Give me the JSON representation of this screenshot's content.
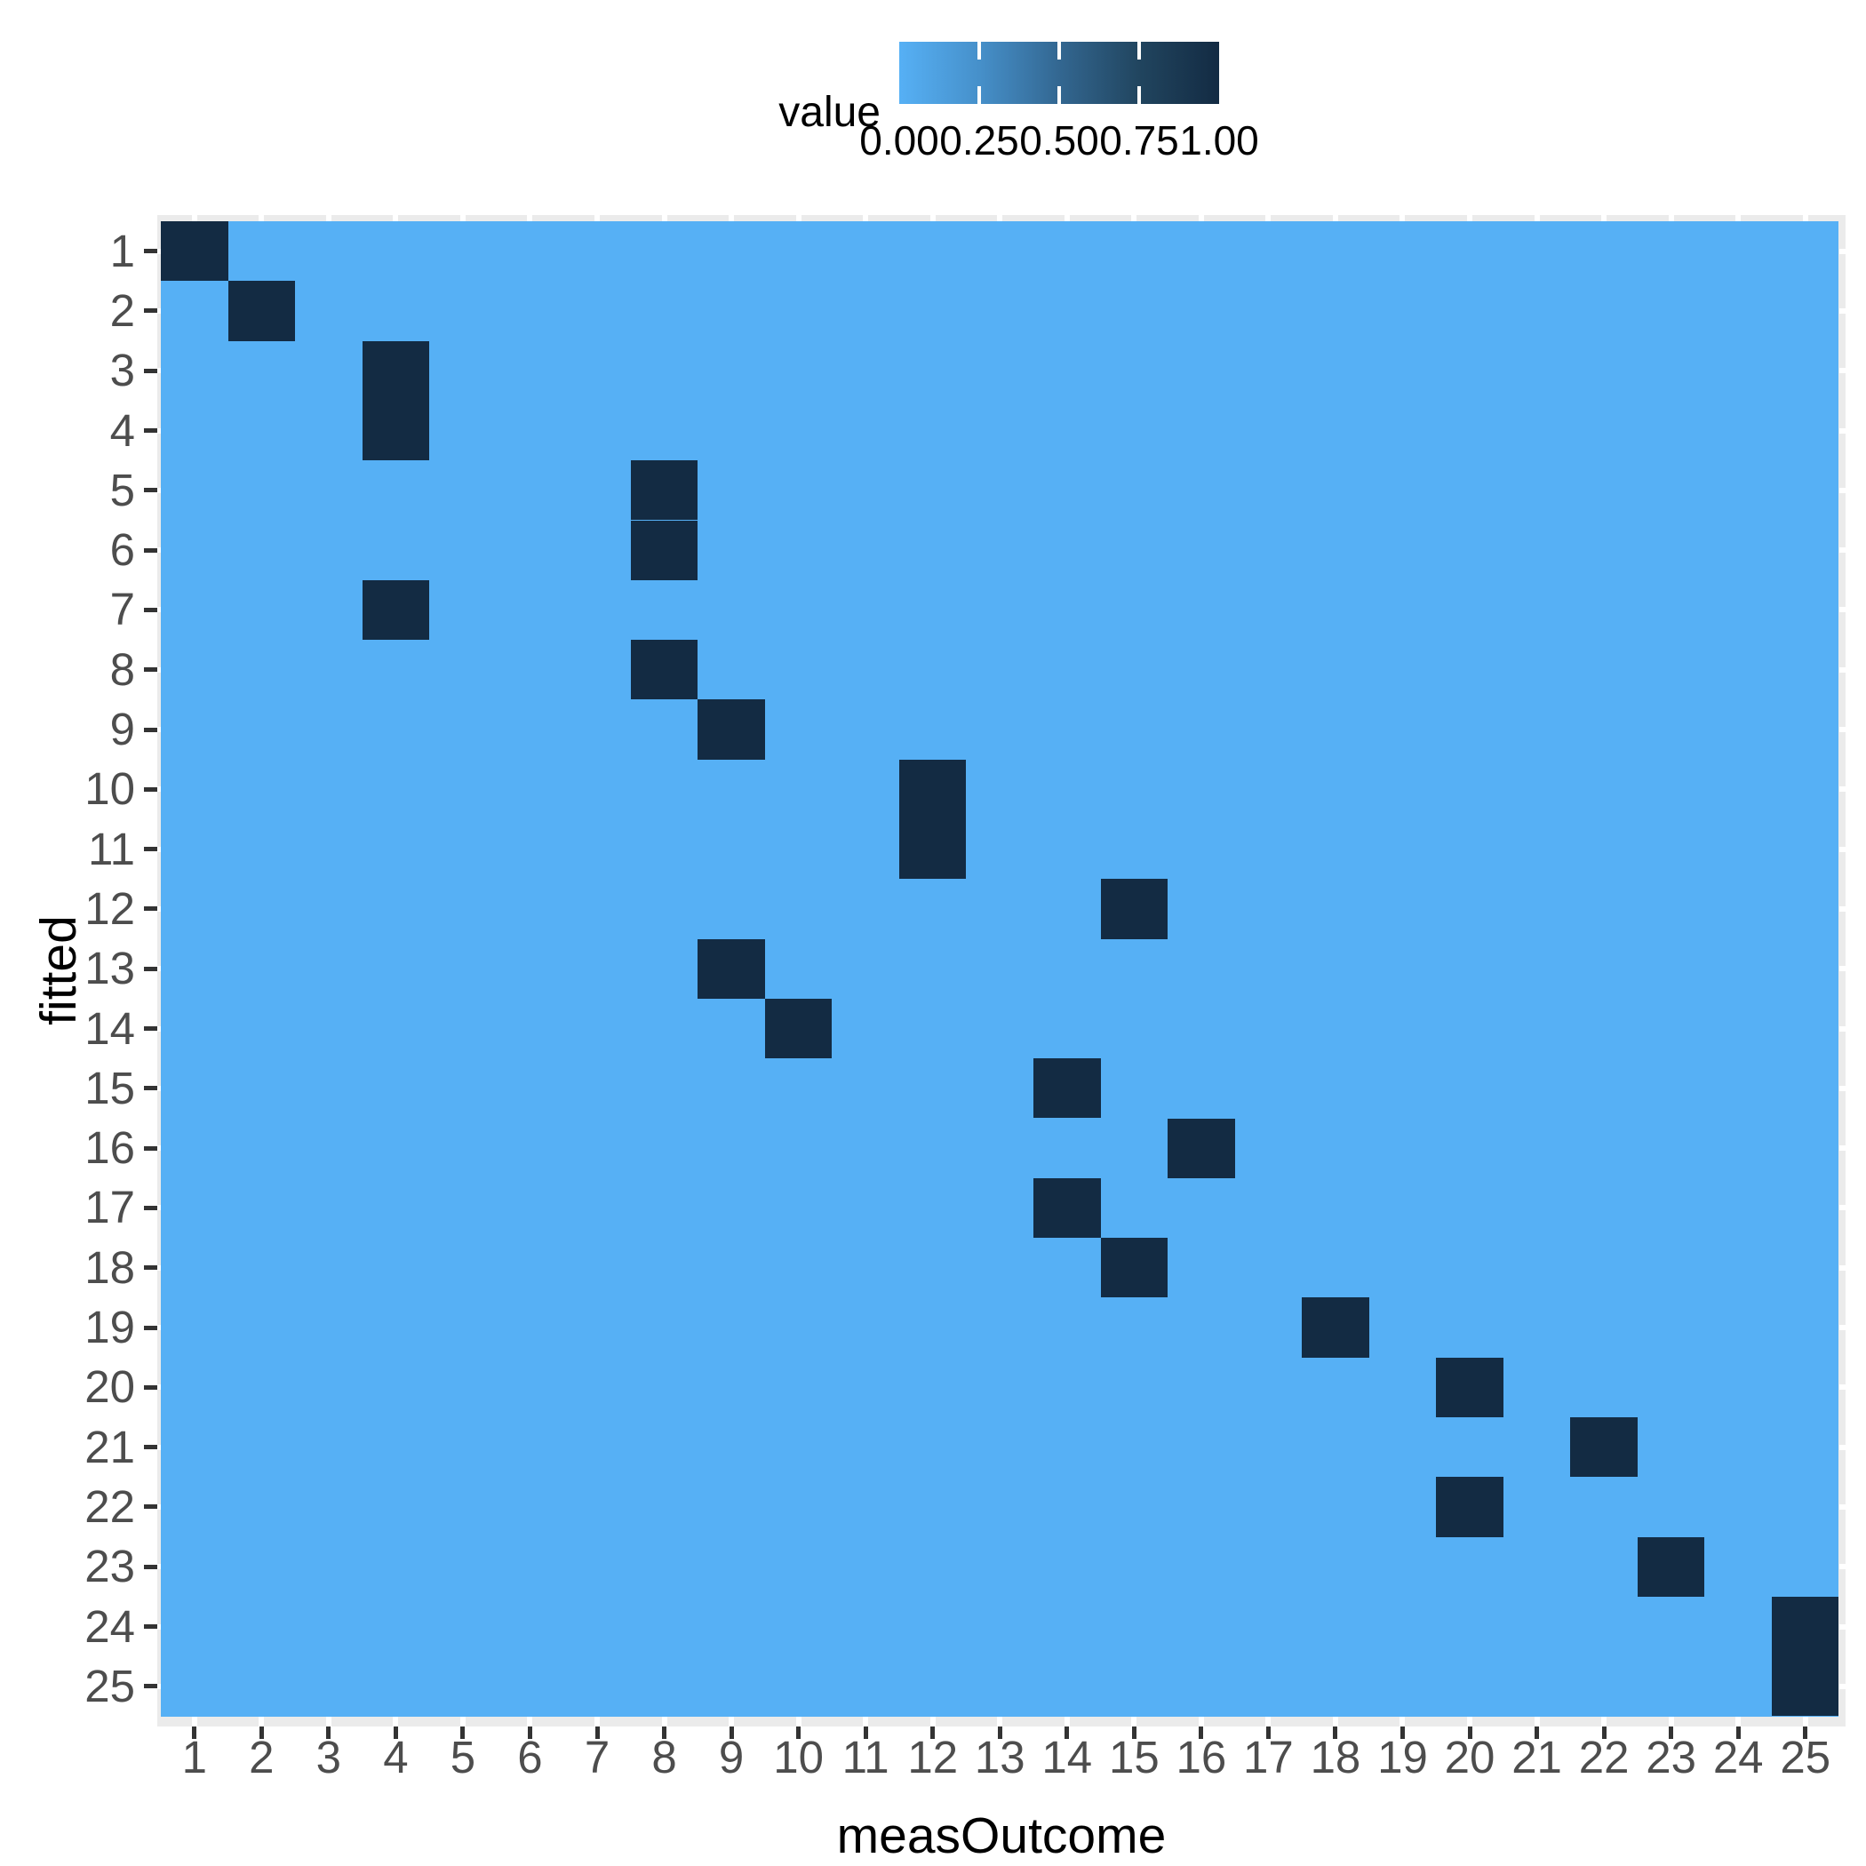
{
  "chart_data": {
    "type": "heatmap",
    "title": "",
    "xlabel": "measOutcome",
    "ylabel": "fitted",
    "x_categories": [
      "1",
      "2",
      "3",
      "4",
      "5",
      "6",
      "7",
      "8",
      "9",
      "10",
      "11",
      "12",
      "13",
      "14",
      "15",
      "16",
      "17",
      "18",
      "19",
      "20",
      "21",
      "22",
      "23",
      "24",
      "25"
    ],
    "y_categories": [
      "1",
      "2",
      "3",
      "4",
      "5",
      "6",
      "7",
      "8",
      "9",
      "10",
      "11",
      "12",
      "13",
      "14",
      "15",
      "16",
      "17",
      "18",
      "19",
      "20",
      "21",
      "22",
      "23",
      "24",
      "25"
    ],
    "value_range": [
      0,
      1
    ],
    "background_value": 0,
    "grid": "off",
    "legend_position": "top",
    "cells": [
      {
        "fitted": 1,
        "measOutcome": 1,
        "value": 1
      },
      {
        "fitted": 2,
        "measOutcome": 2,
        "value": 1
      },
      {
        "fitted": 3,
        "measOutcome": 4,
        "value": 1
      },
      {
        "fitted": 4,
        "measOutcome": 4,
        "value": 1
      },
      {
        "fitted": 5,
        "measOutcome": 8,
        "value": 1
      },
      {
        "fitted": 6,
        "measOutcome": 8,
        "value": 1
      },
      {
        "fitted": 7,
        "measOutcome": 4,
        "value": 1
      },
      {
        "fitted": 8,
        "measOutcome": 8,
        "value": 1
      },
      {
        "fitted": 9,
        "measOutcome": 9,
        "value": 1
      },
      {
        "fitted": 10,
        "measOutcome": 12,
        "value": 1
      },
      {
        "fitted": 11,
        "measOutcome": 12,
        "value": 1
      },
      {
        "fitted": 12,
        "measOutcome": 15,
        "value": 1
      },
      {
        "fitted": 13,
        "measOutcome": 9,
        "value": 1
      },
      {
        "fitted": 14,
        "measOutcome": 10,
        "value": 1
      },
      {
        "fitted": 15,
        "measOutcome": 14,
        "value": 1
      },
      {
        "fitted": 16,
        "measOutcome": 16,
        "value": 1
      },
      {
        "fitted": 17,
        "measOutcome": 14,
        "value": 1
      },
      {
        "fitted": 18,
        "measOutcome": 15,
        "value": 1
      },
      {
        "fitted": 19,
        "measOutcome": 18,
        "value": 1
      },
      {
        "fitted": 20,
        "measOutcome": 20,
        "value": 1
      },
      {
        "fitted": 21,
        "measOutcome": 22,
        "value": 1
      },
      {
        "fitted": 22,
        "measOutcome": 20,
        "value": 1
      },
      {
        "fitted": 23,
        "measOutcome": 23,
        "value": 1
      },
      {
        "fitted": 24,
        "measOutcome": 25,
        "value": 1
      },
      {
        "fitted": 25,
        "measOutcome": 25,
        "value": 1
      }
    ],
    "colors": {
      "low": "#56B0F5",
      "high": "#132B43",
      "panel_background": "#EBEBEB",
      "gridline": "#FFFFFF",
      "tick": "#333333",
      "axis_text": "#4D4D4D",
      "title_text": "#000000"
    },
    "legend": {
      "title": "value",
      "tick_labels": [
        "0.00",
        "0.25",
        "0.50",
        "0.75",
        "1.00"
      ],
      "gradient_stops": [
        "#56B0F5",
        "#4690CA",
        "#336791",
        "#21455F",
        "#132B43"
      ]
    }
  }
}
